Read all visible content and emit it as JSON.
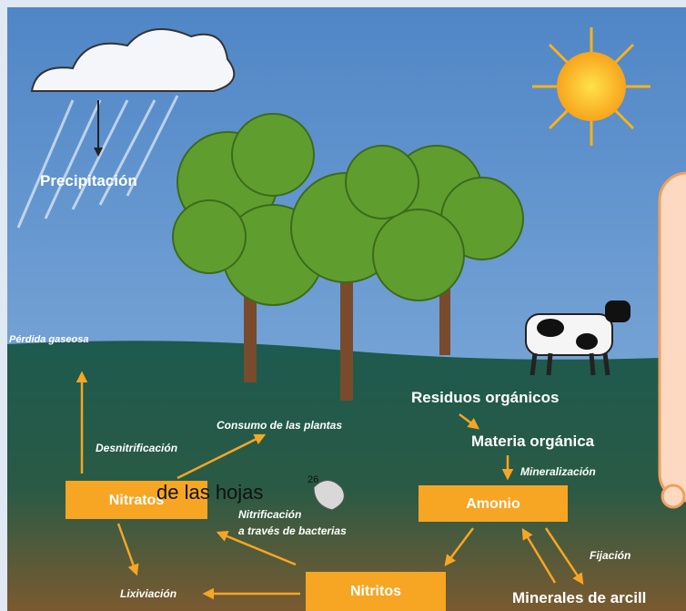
{
  "labels": {
    "precipitation": "Precipitación",
    "gas_loss": "Pérdida gaseosa",
    "denitrification": "Desnitrificación",
    "plant_uptake": "Consumo de las plantas",
    "organic_waste": "Residuos orgánicos",
    "organic_matter": "Materia orgánica",
    "mineralization": "Mineralización",
    "nitrification": [
      "Nitrificación",
      "a través de bacterias"
    ],
    "fixation": "Fijación",
    "leaching": "Lixiviación",
    "clay_minerals": "Minerales de arcill"
  },
  "boxes": {
    "nitrates": "Nitratos",
    "ammonium": "Amonio",
    "nitrites": "Nitritos"
  },
  "overlay": {
    "text": "de las hojas",
    "superscript": "26"
  }
}
